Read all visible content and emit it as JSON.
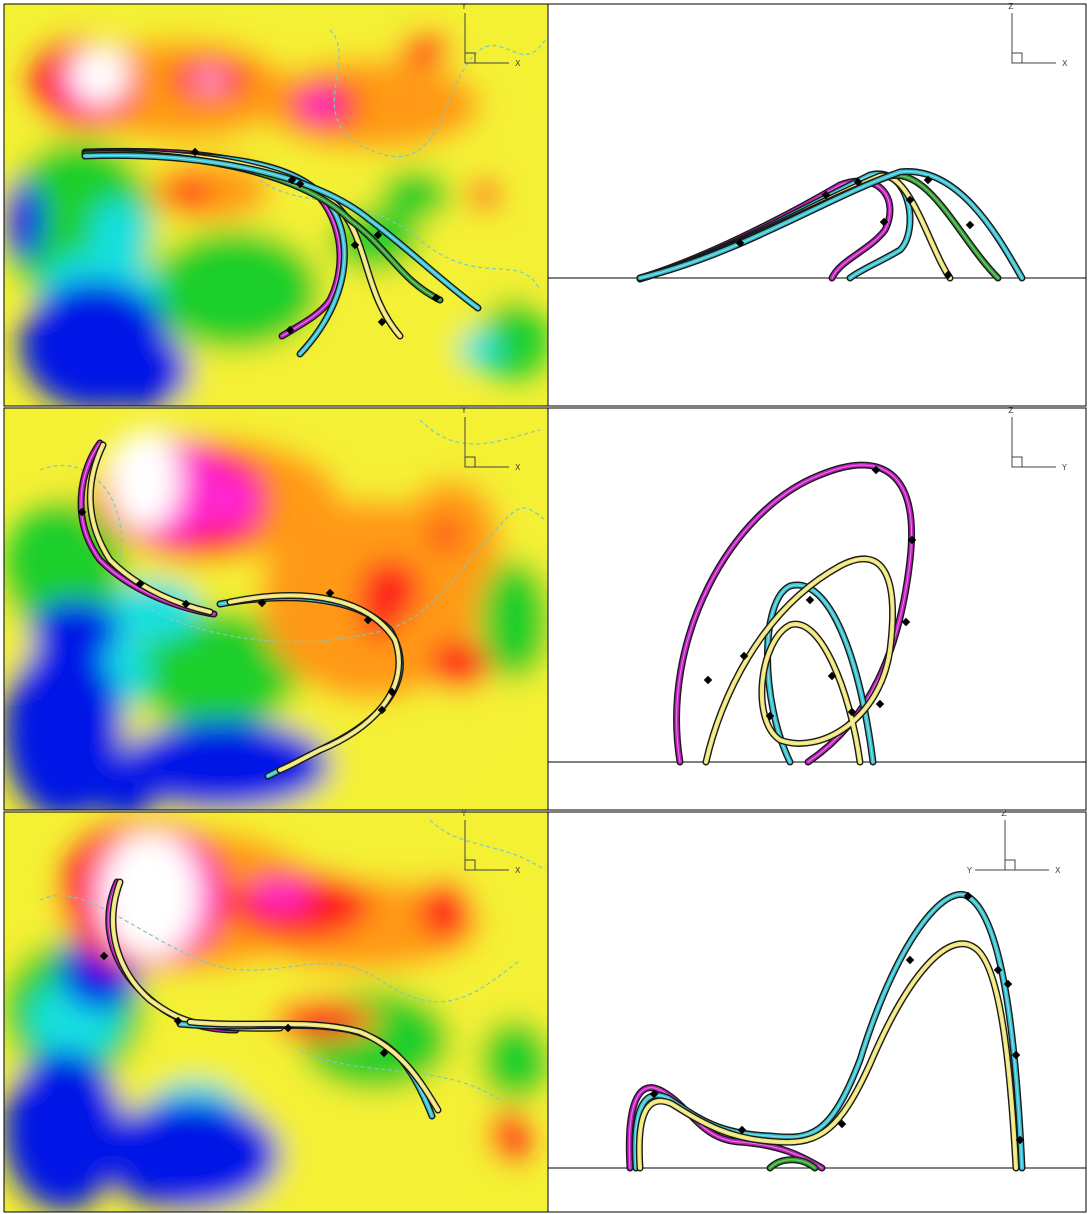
{
  "figure": {
    "panels": [
      {
        "id": "row1-top-view",
        "view": "top",
        "axes": {
          "a": "Y",
          "b": "X"
        },
        "colormap": "rainbow",
        "lines": [
          "magenta",
          "cyan",
          "yellow",
          "green"
        ]
      },
      {
        "id": "row1-side-view",
        "view": "side",
        "axes": {
          "a": "Z",
          "b": "X"
        },
        "lines": [
          "magenta",
          "cyan",
          "yellow",
          "green"
        ]
      },
      {
        "id": "row2-top-view",
        "view": "top",
        "axes": {
          "a": "Y",
          "b": "X"
        },
        "colormap": "rainbow",
        "lines": [
          "magenta",
          "cyan",
          "yellow"
        ]
      },
      {
        "id": "row2-side-view",
        "view": "side",
        "axes": {
          "a": "Z",
          "b": "Y"
        },
        "lines": [
          "magenta",
          "cyan",
          "yellow"
        ]
      },
      {
        "id": "row3-top-view",
        "view": "top",
        "axes": {
          "a": "Y",
          "b": "X"
        },
        "colormap": "rainbow",
        "lines": [
          "magenta",
          "cyan",
          "yellow"
        ]
      },
      {
        "id": "row3-side-view",
        "view": "side",
        "axes": {
          "a": "Z",
          "b": "X",
          "c": "Y"
        },
        "lines": [
          "magenta",
          "cyan",
          "yellow",
          "green"
        ]
      }
    ],
    "colors": {
      "magenta": "#c41ec4",
      "cyan": "#37c4d2",
      "yellow": "#f0e676",
      "green": "#2e9e2e",
      "outline": "#1a1a1a",
      "contour": "#7ec9c0",
      "background": "#ffffff",
      "map_base": "#f4f034"
    }
  }
}
